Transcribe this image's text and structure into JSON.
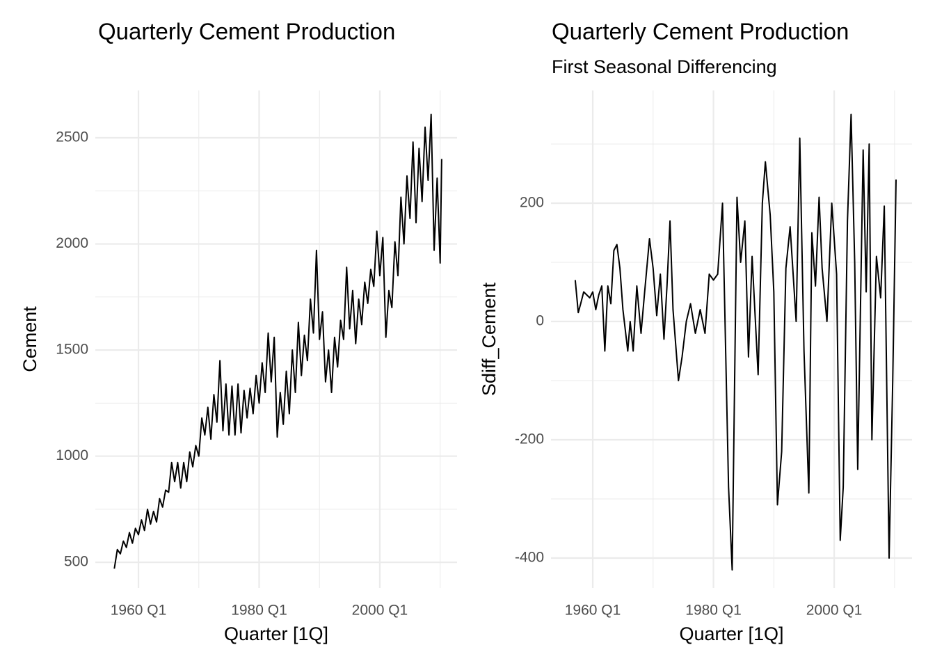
{
  "chart_data": [
    {
      "type": "line",
      "title": "Quarterly Cement Production",
      "x_label": "Quarter [1Q]",
      "y_label": "Cement",
      "color": "#000000",
      "grid": true,
      "xlim": [
        1952.85,
        2012.8
      ],
      "ylim": [
        379,
        2723
      ],
      "xticks": [
        {
          "value": 1960,
          "label": "1960 Q1"
        },
        {
          "value": 1980,
          "label": "1980 Q1"
        },
        {
          "value": 2000,
          "label": "2000 Q1"
        }
      ],
      "xminor": [
        1970,
        1990,
        2010
      ],
      "yticks": [
        500,
        1000,
        1500,
        2000,
        2500
      ],
      "yminor": [
        750,
        1250,
        1750,
        2250
      ],
      "x": [
        1956,
        1956.5,
        1957,
        1957.5,
        1958,
        1958.5,
        1959,
        1959.5,
        1960,
        1960.5,
        1961,
        1961.5,
        1962,
        1962.5,
        1963,
        1963.5,
        1964,
        1964.5,
        1965,
        1965.5,
        1966,
        1966.5,
        1967,
        1967.5,
        1968,
        1968.5,
        1969,
        1969.5,
        1970,
        1970.5,
        1971,
        1971.5,
        1972,
        1972.5,
        1973,
        1973.5,
        1974,
        1974.5,
        1975,
        1975.5,
        1976,
        1976.5,
        1977,
        1977.5,
        1978,
        1978.5,
        1979,
        1979.5,
        1980,
        1980.5,
        1981,
        1981.5,
        1982,
        1982.5,
        1983,
        1983.5,
        1984,
        1984.5,
        1985,
        1985.5,
        1986,
        1986.5,
        1987,
        1987.5,
        1988,
        1988.5,
        1989,
        1989.5,
        1990,
        1990.5,
        1991,
        1991.5,
        1992,
        1992.5,
        1993,
        1993.5,
        1994,
        1994.5,
        1995,
        1995.5,
        1996,
        1996.5,
        1997,
        1997.5,
        1998,
        1998.5,
        1999,
        1999.5,
        2000,
        2000.5,
        2001,
        2001.5,
        2002,
        2002.5,
        2003,
        2003.5,
        2004,
        2004.5,
        2005,
        2005.5,
        2006,
        2006.5,
        2007,
        2007.5,
        2008,
        2008.5,
        2009,
        2009.5,
        2010,
        2010.25
      ],
      "values": [
        470,
        560,
        540,
        600,
        570,
        640,
        590,
        660,
        630,
        700,
        650,
        750,
        680,
        740,
        690,
        800,
        760,
        840,
        830,
        970,
        880,
        970,
        850,
        970,
        880,
        1020,
        950,
        1050,
        1000,
        1180,
        1100,
        1230,
        1080,
        1290,
        1160,
        1450,
        1120,
        1340,
        1100,
        1330,
        1100,
        1340,
        1110,
        1310,
        1180,
        1320,
        1200,
        1380,
        1250,
        1440,
        1300,
        1580,
        1350,
        1560,
        1090,
        1300,
        1150,
        1400,
        1200,
        1500,
        1300,
        1630,
        1380,
        1570,
        1450,
        1740,
        1580,
        1970,
        1550,
        1680,
        1350,
        1500,
        1300,
        1560,
        1420,
        1640,
        1550,
        1890,
        1600,
        1780,
        1530,
        1740,
        1620,
        1820,
        1720,
        1880,
        1800,
        2060,
        1850,
        2030,
        1560,
        1780,
        1700,
        2010,
        1850,
        2220,
        2000,
        2320,
        2120,
        2480,
        2100,
        2450,
        2200,
        2550,
        2300,
        2610,
        1970,
        2310,
        1910,
        2400
      ]
    },
    {
      "type": "line",
      "title": "Quarterly Cement Production",
      "subtitle": "First Seasonal Differencing",
      "x_label": "Quarter [1Q]",
      "y_label": "Sdiff_Cement",
      "color": "#000000",
      "grid": true,
      "xlim": [
        1953.08,
        2012.9
      ],
      "ylim": [
        -450.6,
        390.6
      ],
      "xticks": [
        {
          "value": 1960,
          "label": "1960 Q1"
        },
        {
          "value": 1980,
          "label": "1980 Q1"
        },
        {
          "value": 2000,
          "label": "2000 Q1"
        }
      ],
      "xminor": [
        1970,
        1990,
        2010
      ],
      "yticks": [
        -400,
        -200,
        0,
        200
      ],
      "yminor": [
        -300,
        -100,
        100,
        300
      ],
      "x": [
        1957.1,
        1957.6,
        1958,
        1958.5,
        1959,
        1959.5,
        1960,
        1960.5,
        1961,
        1961.5,
        1962,
        1962.5,
        1963,
        1963.5,
        1964,
        1964.5,
        1965,
        1965.8,
        1966.2,
        1966.7,
        1967.3,
        1968,
        1968.6,
        1969.4,
        1970,
        1970.6,
        1971.2,
        1971.8,
        1972.3,
        1972.8,
        1973.3,
        1974.2,
        1974.8,
        1975.5,
        1976.2,
        1977,
        1977.8,
        1978.6,
        1979.3,
        1980,
        1980.7,
        1981.5,
        1982.5,
        1983.1,
        1983.9,
        1984.5,
        1985.2,
        1985.8,
        1986.4,
        1987.4,
        1988.1,
        1988.6,
        1989.4,
        1990,
        1990.6,
        1991.3,
        1992,
        1992.7,
        1993.7,
        1994.3,
        1995,
        1995.8,
        1996.3,
        1996.9,
        1997.5,
        1998,
        1998.8,
        1999.6,
        2000.4,
        2001,
        2001.5,
        2002.2,
        2002.8,
        2003.4,
        2003.9,
        2004.8,
        2005.3,
        2005.8,
        2006.25,
        2007,
        2007.7,
        2008.3,
        2009.1,
        2009.7,
        2010.25
      ],
      "values": [
        70,
        15,
        30,
        50,
        45,
        40,
        50,
        20,
        45,
        60,
        -50,
        60,
        30,
        120,
        130,
        90,
        20,
        -50,
        0,
        -50,
        60,
        -20,
        50,
        140,
        90,
        10,
        80,
        -30,
        60,
        170,
        20,
        -100,
        -60,
        0,
        30,
        -20,
        20,
        -20,
        80,
        70,
        80,
        200,
        -280,
        -420,
        210,
        100,
        170,
        -60,
        110,
        -90,
        200,
        270,
        180,
        50,
        -310,
        -220,
        90,
        160,
        0,
        310,
        -50,
        -290,
        150,
        60,
        210,
        90,
        0,
        200,
        80,
        -370,
        -280,
        170,
        350,
        100,
        -250,
        290,
        50,
        300,
        -200,
        110,
        40,
        195,
        -400,
        -100,
        240
      ]
    }
  ]
}
